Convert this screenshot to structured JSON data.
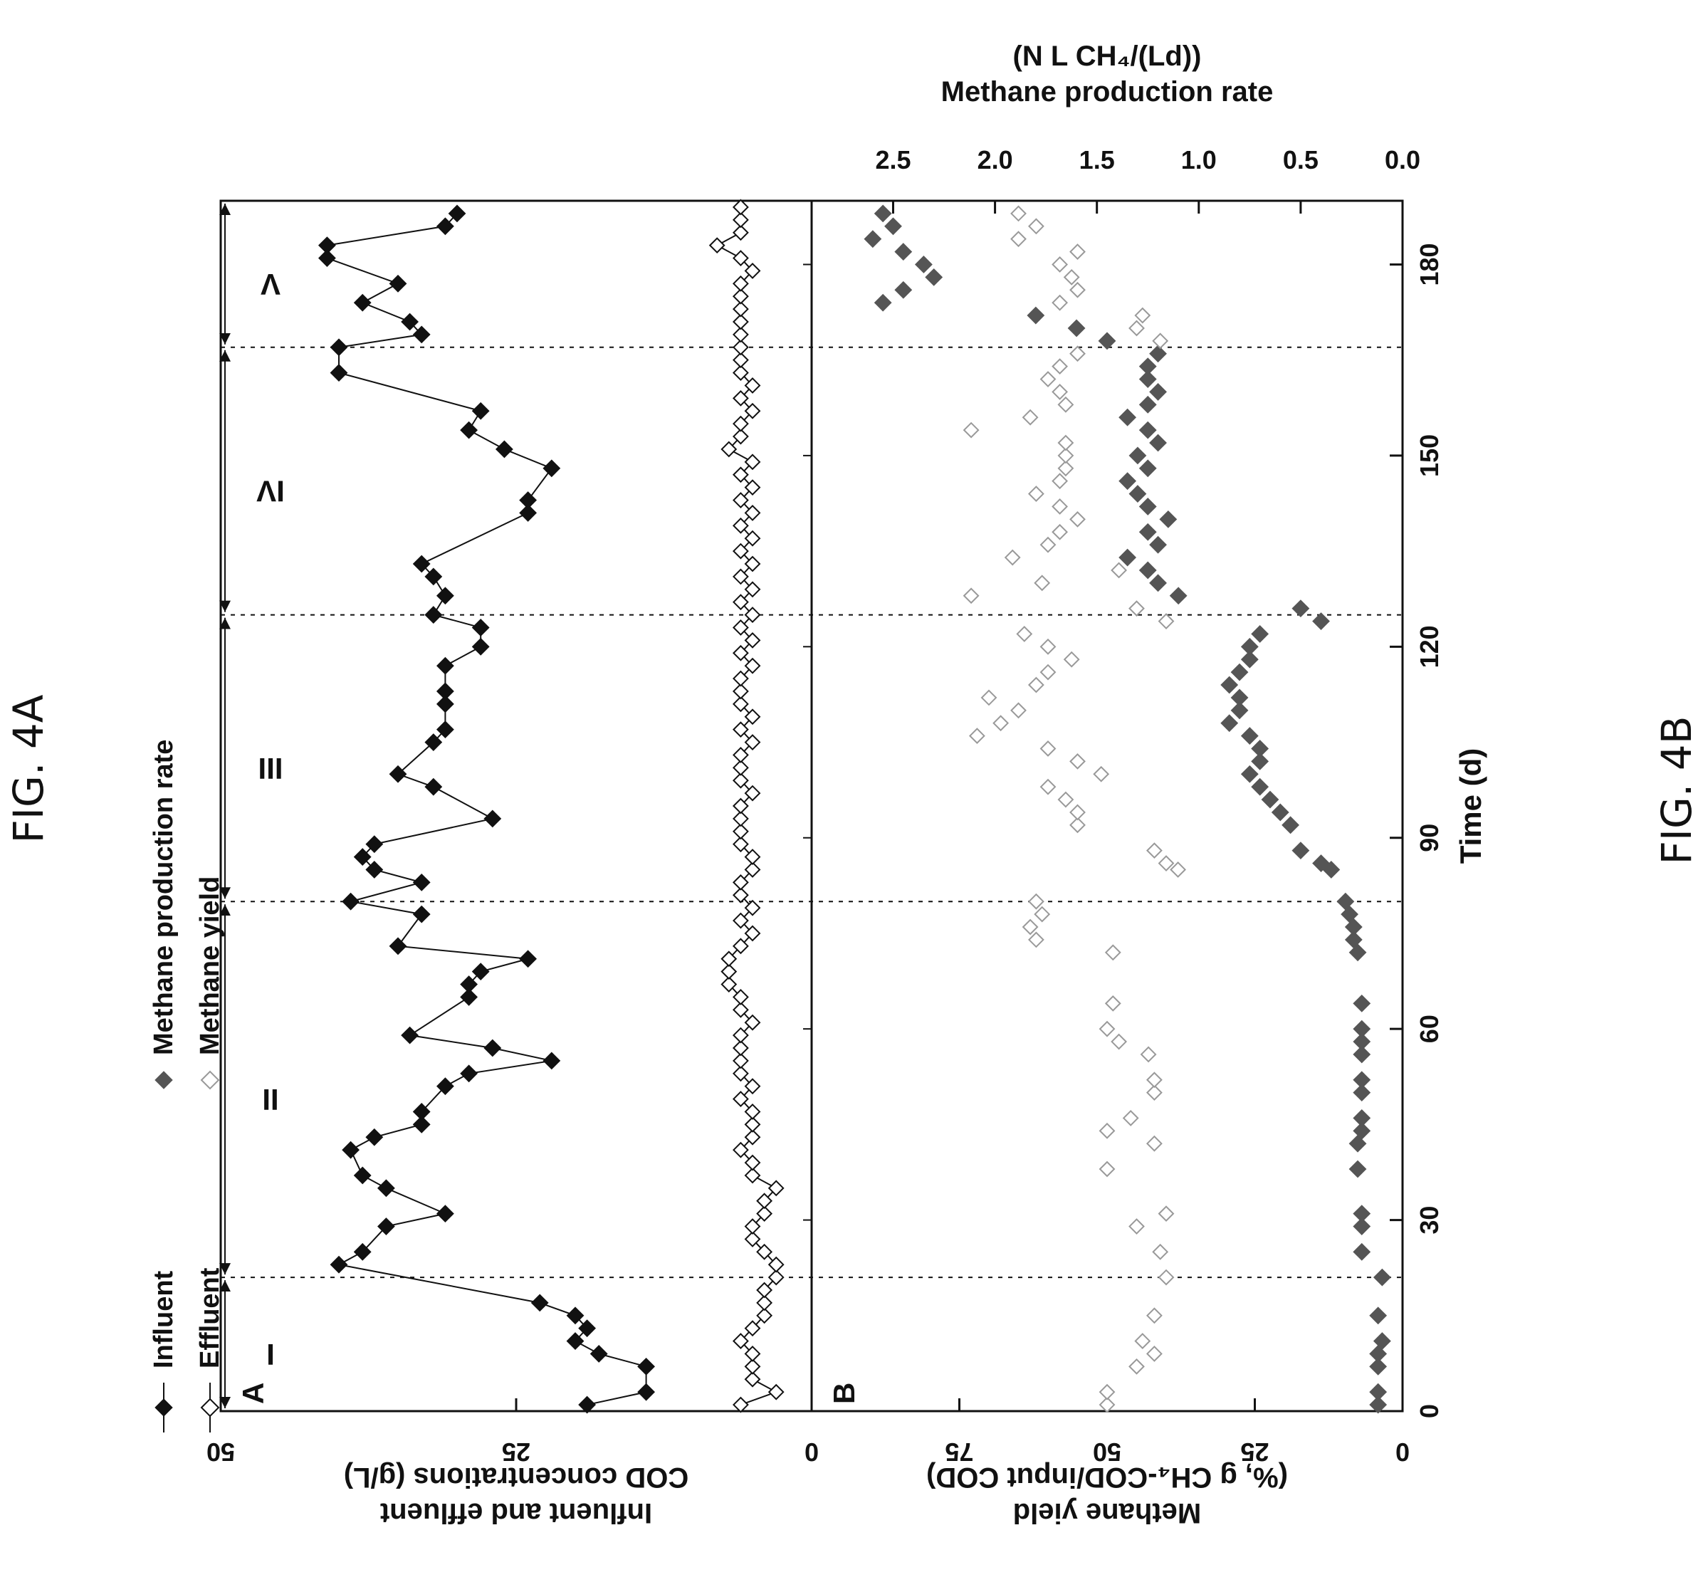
{
  "figure_labels": {
    "fig_a": "FIG. 4A",
    "fig_b": "FIG. 4B"
  },
  "colors": {
    "influent": "#111111",
    "effluent": "#ffffff",
    "production_rate": "#555555",
    "yield": "#999999",
    "axis": "#111111"
  },
  "chart_data": [
    {
      "panel": "A",
      "type": "line",
      "panel_label": "A",
      "xlabel": "Time (d)",
      "ylabel_line1": "Influent and effluent",
      "ylabel_line2": "COD concentrations (g/L)",
      "xlim": [
        0,
        190
      ],
      "ylim": [
        0,
        50
      ],
      "yticks": [
        "50",
        "25",
        "0"
      ],
      "phases": [
        "I",
        "II",
        "III",
        "IV",
        "V"
      ],
      "phase_boundaries": [
        21,
        80,
        125,
        167
      ],
      "legend": {
        "position": "top-left",
        "entries": [
          "Influent",
          "Effluent",
          "Methane production rate",
          "Methane yield"
        ]
      },
      "series": [
        {
          "name": "Influent",
          "marker": "filled-diamond",
          "x": [
            1,
            3,
            7,
            9,
            11,
            13,
            15,
            17,
            23,
            25,
            29,
            31,
            35,
            37,
            41,
            43,
            45,
            47,
            51,
            53,
            55,
            57,
            59,
            65,
            67,
            69,
            71,
            73,
            78,
            80,
            83,
            85,
            87,
            89,
            93,
            98,
            100,
            105,
            107,
            111,
            113,
            117,
            120,
            123,
            125,
            128,
            131,
            133,
            141,
            143,
            148,
            151,
            154,
            157,
            163,
            167,
            169,
            171,
            174,
            177,
            181,
            183,
            186,
            188
          ],
          "y": [
            19,
            14,
            14,
            18,
            20,
            19,
            20,
            23,
            40,
            38,
            36,
            31,
            36,
            38,
            39,
            37,
            33,
            33,
            31,
            29,
            22,
            27,
            34,
            29,
            29,
            28,
            24,
            35,
            33,
            39,
            33,
            37,
            38,
            37,
            27,
            32,
            35,
            32,
            31,
            31,
            31,
            31,
            28,
            28,
            32,
            31,
            32,
            33,
            24,
            24,
            22,
            26,
            29,
            28,
            40,
            40,
            33,
            34,
            38,
            35,
            41,
            41,
            31,
            30
          ]
        },
        {
          "name": "Effluent",
          "marker": "open-diamond",
          "x": [
            1,
            3,
            5,
            7,
            9,
            11,
            13,
            15,
            17,
            19,
            21,
            23,
            25,
            27,
            29,
            31,
            33,
            35,
            37,
            39,
            41,
            43,
            45,
            47,
            49,
            51,
            53,
            55,
            57,
            59,
            61,
            63,
            65,
            67,
            69,
            71,
            73,
            75,
            77,
            79,
            81,
            83,
            85,
            87,
            89,
            91,
            93,
            95,
            97,
            99,
            101,
            103,
            105,
            107,
            109,
            111,
            113,
            115,
            117,
            119,
            121,
            123,
            125,
            127,
            129,
            131,
            133,
            135,
            137,
            139,
            141,
            143,
            145,
            147,
            149,
            151,
            153,
            155,
            157,
            159,
            161,
            163,
            165,
            167,
            169,
            171,
            173,
            175,
            177,
            179,
            181,
            183,
            185,
            187,
            189
          ],
          "y": [
            6,
            3,
            5,
            5,
            5,
            6,
            5,
            4,
            4,
            4,
            3,
            3,
            4,
            5,
            5,
            4,
            4,
            3,
            5,
            5,
            6,
            5,
            5,
            5,
            6,
            5,
            6,
            6,
            6,
            6,
            5,
            6,
            6,
            7,
            7,
            7,
            6,
            5,
            6,
            5,
            6,
            6,
            5,
            5,
            6,
            6,
            6,
            6,
            5,
            6,
            6,
            6,
            5,
            6,
            5,
            6,
            6,
            6,
            5,
            6,
            5,
            6,
            5,
            6,
            5,
            6,
            5,
            6,
            5,
            6,
            5,
            6,
            5,
            6,
            5,
            7,
            6,
            6,
            5,
            6,
            5,
            6,
            6,
            6,
            6,
            6,
            6,
            6,
            6,
            5,
            6,
            8,
            6,
            6,
            6
          ]
        }
      ]
    },
    {
      "panel": "B",
      "type": "scatter",
      "panel_label": "B",
      "xlabel": "Time (d)",
      "ylabel_line1": "Methane yield",
      "ylabel_line2": "(%, g CH₄-COD/input COD)",
      "y2label_line1": "Methane production rate",
      "y2label_line2": "(N L CH₄/(Ld))",
      "xlim": [
        0,
        190
      ],
      "xticks": [
        "0",
        "30",
        "60",
        "90",
        "120",
        "150",
        "180"
      ],
      "ylim": [
        0,
        100
      ],
      "yticks": [
        "0",
        "25",
        "50",
        "75"
      ],
      "y2lim": [
        0,
        2.9
      ],
      "y2ticks": [
        "0.0",
        "0.5",
        "1.0",
        "1.5",
        "2.0",
        "2.5"
      ],
      "series": [
        {
          "name": "Methane production rate",
          "axis": "right",
          "marker": "filled-diamond",
          "x": [
            1,
            3,
            7,
            9,
            11,
            15,
            21,
            25,
            29,
            31,
            38,
            42,
            44,
            46,
            50,
            52,
            56,
            58,
            60,
            64,
            72,
            74,
            76,
            78,
            80,
            85,
            86,
            88,
            92,
            94,
            96,
            98,
            100,
            102,
            104,
            106,
            108,
            110,
            112,
            114,
            116,
            118,
            120,
            122,
            124,
            126,
            128,
            130,
            132,
            134,
            136,
            138,
            140,
            142,
            144,
            146,
            148,
            150,
            152,
            154,
            156,
            158,
            160,
            162,
            164,
            166,
            168,
            170,
            172,
            174,
            176,
            178,
            180,
            182,
            184,
            186,
            188
          ],
          "y": [
            0.12,
            0.12,
            0.12,
            0.12,
            0.1,
            0.12,
            0.1,
            0.2,
            0.2,
            0.2,
            0.22,
            0.22,
            0.2,
            0.2,
            0.2,
            0.2,
            0.2,
            0.2,
            0.2,
            0.2,
            0.22,
            0.24,
            0.24,
            0.26,
            0.28,
            0.35,
            0.4,
            0.5,
            0.55,
            0.6,
            0.65,
            0.7,
            0.75,
            0.7,
            0.7,
            0.75,
            0.85,
            0.8,
            0.8,
            0.85,
            0.8,
            0.75,
            0.75,
            0.7,
            0.4,
            0.5,
            1.1,
            1.2,
            1.25,
            1.35,
            1.2,
            1.25,
            1.15,
            1.25,
            1.3,
            1.35,
            1.25,
            1.3,
            1.2,
            1.25,
            1.35,
            1.25,
            1.2,
            1.25,
            1.25,
            1.2,
            1.45,
            1.6,
            1.8,
            2.55,
            2.45,
            2.3,
            2.35,
            2.45,
            2.6,
            2.5,
            2.55
          ]
        },
        {
          "name": "Methane yield",
          "axis": "left",
          "marker": "open-diamond",
          "x": [
            1,
            3,
            7,
            9,
            11,
            15,
            21,
            25,
            29,
            31,
            38,
            42,
            44,
            46,
            50,
            52,
            56,
            58,
            60,
            64,
            72,
            74,
            76,
            78,
            80,
            85,
            86,
            88,
            92,
            94,
            96,
            98,
            100,
            102,
            104,
            106,
            108,
            110,
            112,
            114,
            116,
            118,
            120,
            122,
            124,
            126,
            128,
            130,
            132,
            134,
            136,
            138,
            140,
            142,
            144,
            146,
            148,
            150,
            152,
            154,
            156,
            158,
            160,
            162,
            164,
            166,
            168,
            170,
            172,
            174,
            176,
            178,
            180,
            182,
            184,
            186,
            188
          ],
          "y": [
            50,
            50,
            45,
            42,
            44,
            42,
            40,
            41,
            45,
            40,
            50,
            42,
            50,
            46,
            42,
            42,
            43,
            48,
            50,
            49,
            49,
            62,
            63,
            61,
            62,
            38,
            40,
            42,
            55,
            55,
            57,
            60,
            51,
            55,
            60,
            72,
            68,
            65,
            70,
            62,
            60,
            56,
            60,
            64,
            40,
            45,
            73,
            61,
            48,
            66,
            60,
            58,
            55,
            58,
            62,
            58,
            57,
            57,
            57,
            73,
            63,
            57,
            58,
            60,
            58,
            55,
            41,
            45,
            44,
            58,
            55,
            56,
            58,
            55,
            65,
            62,
            65
          ]
        }
      ]
    }
  ]
}
